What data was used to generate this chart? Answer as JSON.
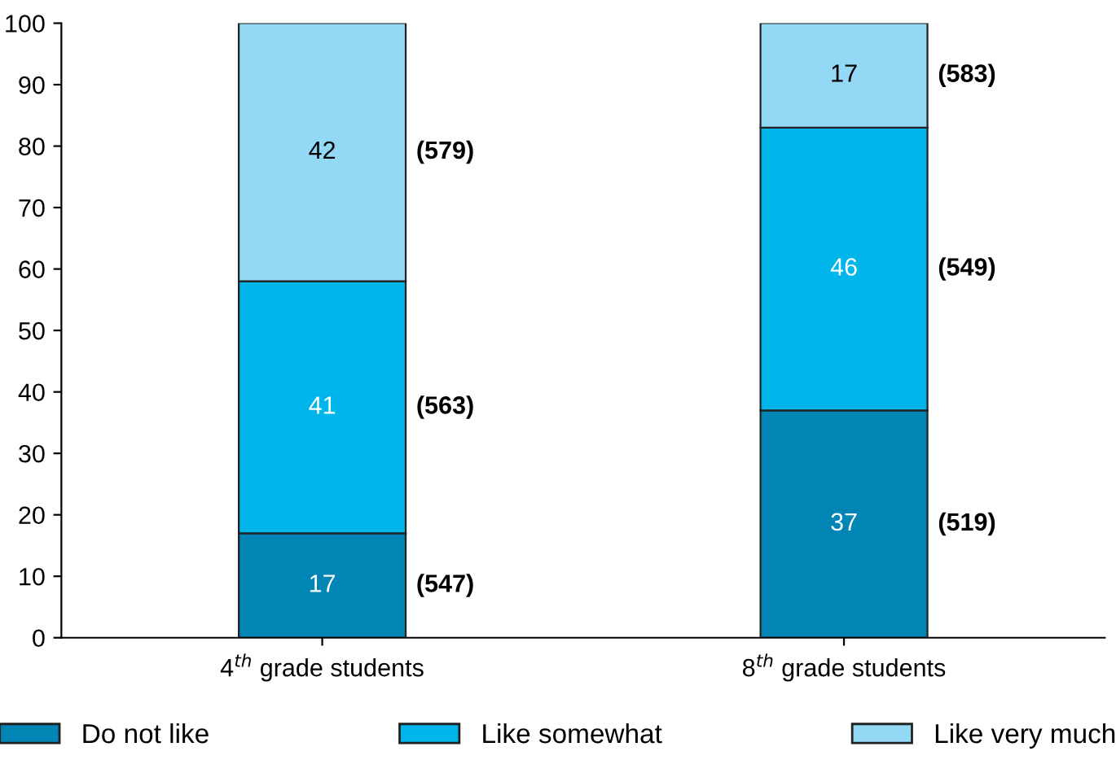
{
  "chart_data": {
    "type": "bar",
    "stacked": true,
    "data_labels": true,
    "legend": "bottom",
    "grid": false,
    "categories": [
      "4$^{th}$ grade students",
      "8$^{th}$ grade students"
    ],
    "series": [
      {
        "name": "Do not like",
        "color": "#0085b5",
        "values": [
          17,
          37
        ]
      },
      {
        "name": "Like somewhat",
        "color": "#00b5ea",
        "values": [
          41,
          46
        ]
      },
      {
        "name": "Like very much",
        "color": "#93d9f6",
        "values": [
          42,
          17
        ]
      }
    ],
    "ylim": [
      0,
      100
    ],
    "yticks": [
      0,
      10,
      20,
      30,
      40,
      50,
      60,
      70,
      80,
      90,
      100
    ],
    "annotations": [
      "(547)",
      "(563)",
      "(579)",
      "(519)",
      "(549)",
      "(583)"
    ]
  }
}
